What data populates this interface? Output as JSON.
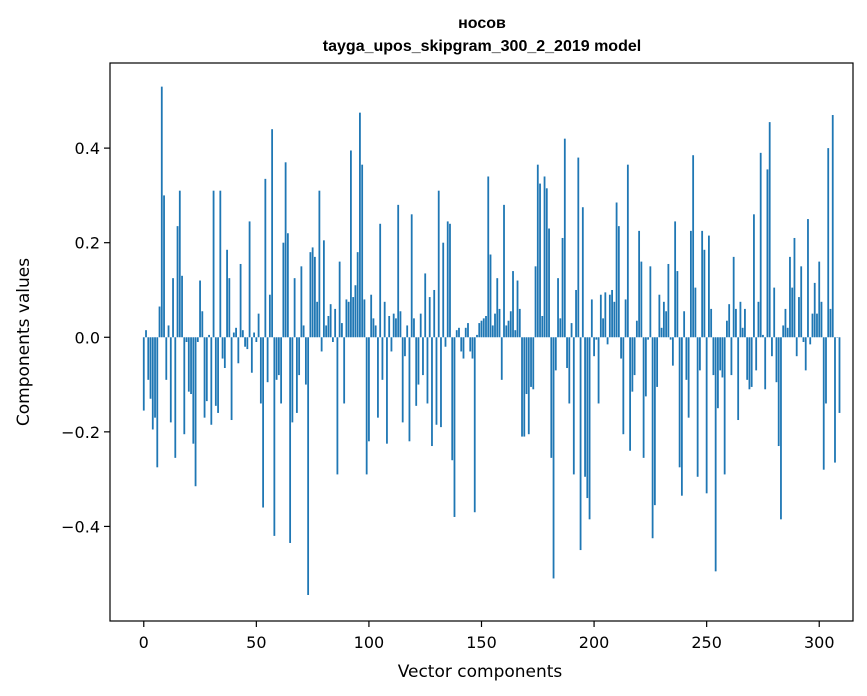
{
  "chart_data": {
    "type": "bar",
    "title_line1": "носов",
    "title_line2": "tayga_upos_skipgram_300_2_2019 model",
    "xlabel": "Vector components",
    "ylabel": "Components values",
    "xlim": [
      -15,
      315
    ],
    "ylim": [
      -0.6,
      0.58
    ],
    "xticks": [
      0,
      50,
      100,
      150,
      200,
      250,
      300
    ],
    "xtick_labels": [
      "0",
      "50",
      "100",
      "150",
      "200",
      "250",
      "300"
    ],
    "yticks": [
      -0.4,
      -0.2,
      0.0,
      0.2,
      0.4
    ],
    "ytick_labels": [
      "−0.4",
      "−0.2",
      "0.0",
      "0.2",
      "0.4"
    ],
    "bar_color": "#1f77b4",
    "values": [
      -0.155,
      0.015,
      -0.09,
      -0.13,
      -0.195,
      -0.17,
      -0.275,
      0.065,
      0.53,
      0.3,
      -0.09,
      0.025,
      -0.18,
      0.125,
      -0.255,
      0.235,
      0.31,
      0.13,
      -0.205,
      -0.01,
      -0.115,
      -0.12,
      -0.225,
      -0.315,
      -0.01,
      0.12,
      0.055,
      -0.17,
      -0.135,
      0.005,
      -0.185,
      0.31,
      -0.145,
      -0.16,
      0.31,
      -0.045,
      -0.065,
      0.185,
      0.125,
      -0.175,
      0.01,
      0.02,
      -0.055,
      0.155,
      0.015,
      -0.02,
      -0.025,
      0.245,
      -0.075,
      0.01,
      -0.01,
      0.05,
      -0.14,
      -0.36,
      0.335,
      -0.095,
      0.09,
      0.44,
      -0.42,
      -0.09,
      -0.08,
      -0.14,
      0.2,
      0.37,
      0.22,
      -0.435,
      -0.18,
      0.125,
      -0.16,
      -0.08,
      0.15,
      0.025,
      -0.1,
      -0.545,
      0.18,
      0.19,
      0.17,
      0.075,
      0.31,
      -0.03,
      0.205,
      0.025,
      0.045,
      0.07,
      -0.01,
      0.06,
      -0.29,
      0.16,
      0.03,
      -0.14,
      0.08,
      0.075,
      0.395,
      0.085,
      0.11,
      0.18,
      0.475,
      0.365,
      0.08,
      -0.29,
      -0.22,
      0.09,
      0.04,
      0.025,
      -0.17,
      0.24,
      -0.09,
      0.075,
      -0.225,
      0.045,
      -0.03,
      0.05,
      0.04,
      0.28,
      0.055,
      -0.18,
      -0.04,
      0.025,
      -0.22,
      0.26,
      0.04,
      -0.145,
      -0.1,
      0.05,
      -0.08,
      0.135,
      -0.14,
      0.085,
      -0.23,
      0.1,
      -0.185,
      0.31,
      -0.19,
      0.2,
      -0.02,
      0.245,
      0.24,
      -0.26,
      -0.38,
      0.015,
      0.02,
      -0.03,
      -0.045,
      0.02,
      0.03,
      -0.03,
      -0.045,
      -0.37,
      0.005,
      0.03,
      0.035,
      0.04,
      0.045,
      0.34,
      0.175,
      0.025,
      0.05,
      0.125,
      0.06,
      -0.09,
      0.28,
      0.025,
      0.035,
      0.055,
      0.14,
      0.015,
      0.12,
      0.06,
      -0.21,
      -0.21,
      -0.12,
      -0.205,
      -0.105,
      -0.11,
      0.15,
      0.365,
      0.325,
      0.045,
      0.34,
      0.315,
      0.23,
      -0.255,
      -0.51,
      -0.07,
      0.125,
      0.04,
      0.21,
      0.42,
      -0.065,
      -0.14,
      0.03,
      -0.29,
      0.1,
      0.38,
      -0.45,
      0.275,
      -0.295,
      -0.34,
      -0.385,
      0.08,
      -0.04,
      -0.005,
      -0.14,
      0.09,
      0.04,
      0.095,
      -0.015,
      0.09,
      0.1,
      0.075,
      0.285,
      0.235,
      -0.045,
      -0.205,
      0.08,
      0.365,
      -0.24,
      -0.115,
      -0.08,
      0.035,
      0.225,
      0.16,
      -0.255,
      -0.125,
      -0.005,
      0.15,
      -0.425,
      -0.355,
      -0.105,
      0.09,
      0.02,
      0.075,
      0.055,
      0.155,
      -0.005,
      -0.06,
      0.245,
      0.14,
      -0.275,
      -0.335,
      0.055,
      -0.09,
      -0.17,
      0.225,
      0.385,
      0.105,
      -0.295,
      -0.07,
      0.225,
      0.185,
      -0.33,
      0.215,
      0.06,
      -0.08,
      -0.495,
      -0.15,
      -0.07,
      -0.085,
      -0.29,
      0.035,
      0.07,
      -0.08,
      0.17,
      0.06,
      -0.175,
      0.075,
      0.02,
      0.06,
      -0.09,
      -0.11,
      -0.105,
      0.26,
      -0.07,
      0.075,
      0.39,
      0.005,
      -0.11,
      0.355,
      0.455,
      -0.04,
      0.105,
      -0.095,
      -0.23,
      -0.385,
      0.025,
      0.06,
      0.02,
      0.17,
      0.105,
      0.21,
      -0.04,
      0.085,
      0.15,
      -0.01,
      -0.07,
      0.25,
      -0.015,
      0.05,
      0.115,
      0.05,
      0.16,
      0.075,
      -0.28,
      -0.14,
      0.4,
      0.06,
      0.47,
      -0.265,
      0.0,
      -0.16
    ]
  }
}
